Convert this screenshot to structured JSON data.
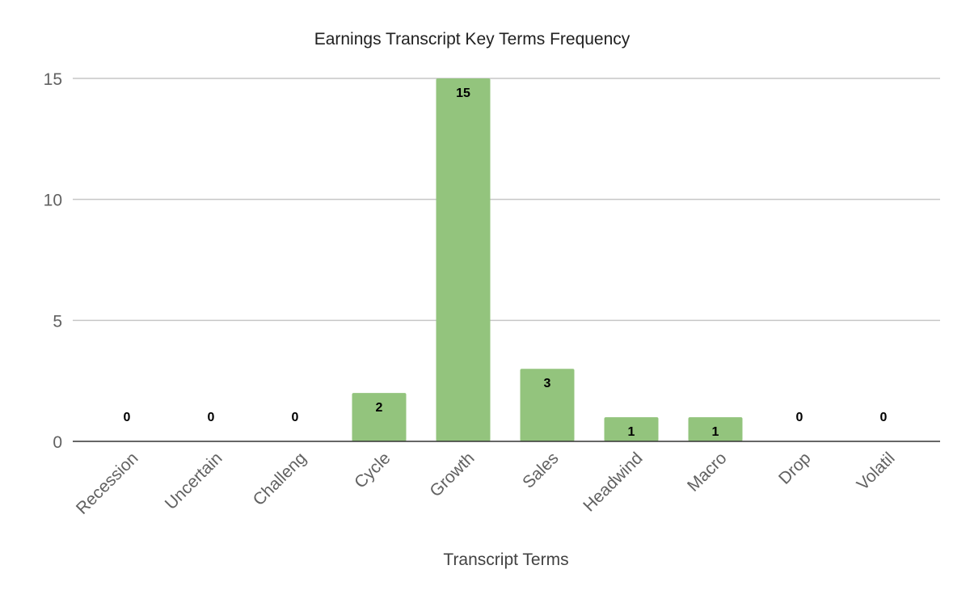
{
  "chart_data": {
    "type": "bar",
    "title": "Earnings Transcript Key Terms Frequency",
    "xlabel": "Transcript Terms",
    "ylabel": "",
    "categories": [
      "Recession",
      "Uncertain",
      "Challeng",
      "Cycle",
      "Growth",
      "Sales",
      "Headwind",
      "Macro",
      "Drop",
      "Volatil"
    ],
    "values": [
      0,
      0,
      0,
      2,
      15,
      3,
      1,
      1,
      0,
      0
    ],
    "ylim": [
      0,
      15
    ],
    "yticks": [
      0,
      5,
      10,
      15
    ],
    "data_labels": true,
    "grid": true,
    "legend": "none",
    "bar_color": "#93c47d"
  }
}
